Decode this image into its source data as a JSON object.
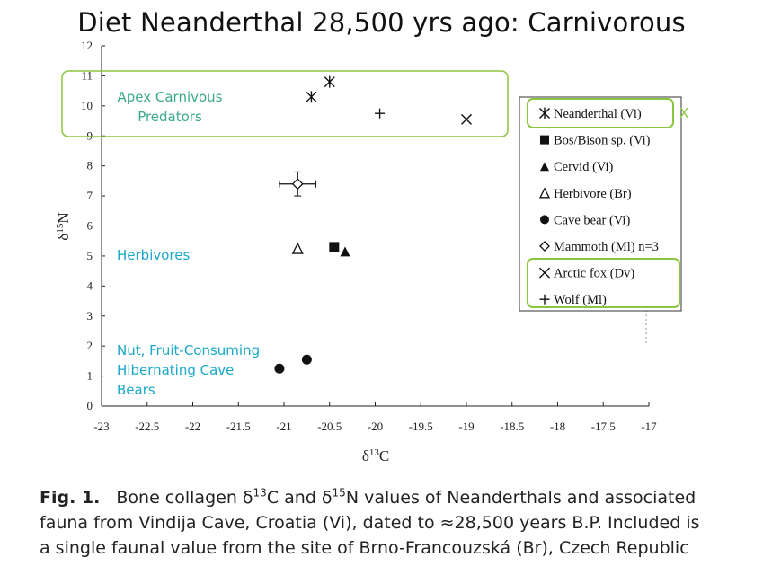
{
  "title": "Diet Neanderthal 28,500 yrs ago: Carnivorous",
  "chart_data": {
    "type": "scatter",
    "title": "Diet Neanderthal 28,500 yrs ago: Carnivorous",
    "xlabel": "δ13C",
    "ylabel": "δ15N",
    "xlim": [
      -23,
      -17
    ],
    "ylim": [
      0,
      12
    ],
    "xticks": [
      -23,
      -22.5,
      -22,
      -21.5,
      -21,
      -20.5,
      -20,
      -19.5,
      -19,
      -18.5,
      -18,
      -17.5,
      -17
    ],
    "yticks": [
      0,
      1,
      2,
      3,
      4,
      5,
      6,
      7,
      8,
      9,
      10,
      11,
      12
    ],
    "series": [
      {
        "name": "Neanderthal (Vi)",
        "marker": "asterisk",
        "points": [
          {
            "x": -20.5,
            "y": 10.8
          },
          {
            "x": -20.7,
            "y": 10.3
          }
        ]
      },
      {
        "name": "Bos/Bison sp. (Vi)",
        "marker": "filled-square",
        "points": [
          {
            "x": -20.45,
            "y": 5.3
          }
        ]
      },
      {
        "name": "Cervid (Vi)",
        "marker": "filled-triangle",
        "points": [
          {
            "x": -20.33,
            "y": 5.15
          }
        ]
      },
      {
        "name": "Herbivore (Br)",
        "marker": "open-triangle",
        "points": [
          {
            "x": -20.85,
            "y": 5.25
          }
        ]
      },
      {
        "name": "Cave bear (Vi)",
        "marker": "filled-circle",
        "points": [
          {
            "x": -21.05,
            "y": 1.25
          },
          {
            "x": -20.75,
            "y": 1.55
          }
        ]
      },
      {
        "name": "Mammoth (Ml) n=3",
        "marker": "open-diamond",
        "points": [
          {
            "x": -20.85,
            "y": 7.4,
            "xerr": 0.2,
            "yerr": 0.4
          }
        ]
      },
      {
        "name": "Arctic fox (Dv)",
        "marker": "x",
        "points": [
          {
            "x": -19.0,
            "y": 9.55
          }
        ]
      },
      {
        "name": "Wolf (Ml)",
        "marker": "plus",
        "points": [
          {
            "x": -19.95,
            "y": 9.75
          }
        ]
      }
    ],
    "legend_position": "right",
    "annotations": [
      {
        "text": [
          "Apex Carnivous",
          "Predators"
        ],
        "color": "#3aaa8a",
        "group": "apex"
      },
      {
        "text": [
          "Herbivores"
        ],
        "color": "#1aa8c8",
        "group": "herbivores"
      },
      {
        "text": [
          "Nut, Fruit-Consuming",
          "Hibernating Cave",
          "Bears"
        ],
        "color": "#1aa8c8",
        "group": "bears"
      }
    ],
    "legend_check_mark": "X"
  },
  "caption": {
    "label": "Fig. 1.",
    "lines": [
      [
        "Bone collagen δ",
        "13",
        "C and δ",
        "15",
        "N values of Neanderthals and associated"
      ],
      [
        "fauna from Vindija Cave, Croatia (Vi), dated to ≈28,500 years B.P. Included is"
      ],
      [
        "a single faunal value from the site of Brno-Francouzská (Br), Czech Republic"
      ]
    ]
  },
  "colors": {
    "highlight_box": "#8cc63f",
    "annotation_green": "#3aaa8a",
    "annotation_cyan": "#1aa8c8",
    "axis": "#222222"
  }
}
